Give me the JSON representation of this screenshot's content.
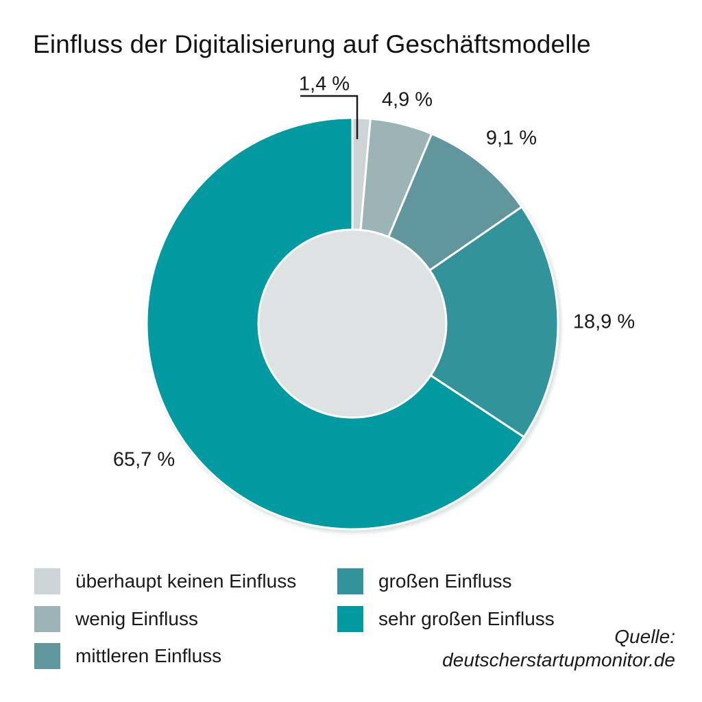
{
  "chart_data": {
    "type": "pie",
    "variant": "donut",
    "title": "Einfluss der Digitalisierung auf Geschäftsmodelle",
    "start_angle_deg_from_top": 0,
    "direction": "clockwise",
    "legend_position": "bottom",
    "slices": [
      {
        "label": "überhaupt keinen Einfluss",
        "value": 1.4,
        "pct_label": "1,4 %",
        "color": "#cdd4d5"
      },
      {
        "label": "wenig Einfluss",
        "value": 4.9,
        "pct_label": "4,9 %",
        "color": "#9db4b6"
      },
      {
        "label": "mittleren Einfluss",
        "value": 9.1,
        "pct_label": "9,1 %",
        "color": "#61979c"
      },
      {
        "label": "großen Einfluss",
        "value": 18.9,
        "pct_label": "18,9 %",
        "color": "#33939b"
      },
      {
        "label": "sehr großen Einfluss",
        "value": 65.7,
        "pct_label": "65,7 %",
        "color": "#009aa0"
      }
    ],
    "source_label": "Quelle:",
    "source_name": "deutscherstartupmonitor.de"
  }
}
